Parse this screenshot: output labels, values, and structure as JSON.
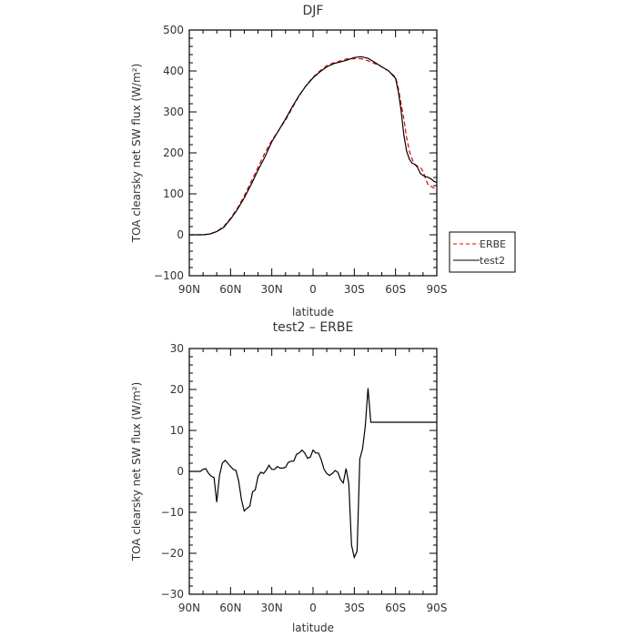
{
  "chart_data": [
    {
      "type": "line",
      "title": "DJF",
      "xlabel": "latitude",
      "ylabel": "TOA clearsky net SW flux (W/m²)",
      "xlim": [
        -90,
        90
      ],
      "ylim": [
        -100,
        500
      ],
      "x_tick_values": [
        -90,
        -60,
        -30,
        0,
        30,
        60,
        90
      ],
      "x_tick_labels": [
        "90N",
        "60N",
        "30N",
        "0",
        "30S",
        "60S",
        "90S"
      ],
      "y_ticks": [
        -100,
        0,
        100,
        200,
        300,
        400,
        500
      ],
      "legend": "outside right",
      "series": [
        {
          "name": "ERBE",
          "color": "#e00000",
          "dash": "dashed",
          "x": [
            -90,
            -85,
            -80,
            -75,
            -70,
            -65,
            -60,
            -55,
            -50,
            -45,
            -40,
            -35,
            -30,
            -25,
            -20,
            -15,
            -10,
            -5,
            0,
            5,
            10,
            15,
            20,
            25,
            30,
            35,
            40,
            45,
            50,
            55,
            60,
            62,
            64,
            66,
            68,
            70,
            72,
            74,
            76,
            78,
            80,
            82,
            84,
            86,
            88,
            90
          ],
          "y": [
            0,
            0,
            0,
            2,
            8,
            20,
            40,
            65,
            95,
            130,
            165,
            200,
            230,
            255,
            280,
            310,
            340,
            365,
            385,
            400,
            413,
            420,
            425,
            430,
            430,
            430,
            425,
            418,
            410,
            400,
            385,
            358,
            320,
            285,
            238,
            205,
            185,
            172,
            168,
            165,
            155,
            135,
            120,
            118,
            114,
            114
          ]
        },
        {
          "name": "test2",
          "color": "#000000",
          "dash": "solid",
          "x": [
            -90,
            -85,
            -80,
            -75,
            -70,
            -65,
            -60,
            -55,
            -50,
            -45,
            -40,
            -35,
            -30,
            -25,
            -20,
            -15,
            -10,
            -5,
            0,
            5,
            10,
            15,
            20,
            25,
            30,
            35,
            40,
            45,
            50,
            55,
            60,
            62,
            64,
            66,
            68,
            70,
            72,
            74,
            76,
            78,
            80,
            82,
            84,
            86,
            88,
            90
          ],
          "y": [
            0,
            0,
            0,
            2,
            8,
            18,
            38,
            62,
            90,
            123,
            158,
            190,
            227,
            255,
            283,
            313,
            341,
            364,
            383,
            398,
            410,
            418,
            422,
            427,
            433,
            435,
            431,
            421,
            410,
            400,
            382,
            350,
            305,
            245,
            205,
            185,
            175,
            172,
            165,
            150,
            145,
            142,
            140,
            136,
            130,
            128
          ]
        }
      ]
    },
    {
      "type": "line",
      "title": "test2 – ERBE",
      "xlabel": "latitude",
      "ylabel": "TOA clearsky net SW flux (W/m²)",
      "xlim": [
        -90,
        90
      ],
      "ylim": [
        -30,
        30
      ],
      "x_tick_values": [
        -90,
        -60,
        -30,
        0,
        30,
        60,
        90
      ],
      "x_tick_labels": [
        "90N",
        "60N",
        "30N",
        "0",
        "30S",
        "60S",
        "90S"
      ],
      "y_ticks": [
        -30,
        -20,
        -10,
        0,
        10,
        20,
        30
      ],
      "series": [
        {
          "color": "#000000",
          "dash": "solid",
          "x": [
            -90,
            -88,
            -86,
            -84,
            -82,
            -80,
            -78,
            -76,
            -74,
            -72,
            -70,
            -68,
            -66,
            -64,
            -62,
            -60,
            -58,
            -56,
            -54,
            -52,
            -50,
            -48,
            -46,
            -44,
            -42,
            -40,
            -38,
            -36,
            -34,
            -32,
            -30,
            -28,
            -26,
            -24,
            -22,
            -20,
            -18,
            -16,
            -14,
            -12,
            -10,
            -8,
            -6,
            -4,
            -2,
            0,
            2,
            4,
            6,
            8,
            10,
            12,
            14,
            16,
            18,
            20,
            22,
            24,
            26,
            28,
            30,
            32,
            34,
            36,
            38,
            40,
            42,
            44,
            46,
            48,
            50,
            52,
            54,
            56,
            58,
            60,
            62,
            64,
            66,
            68,
            70,
            72,
            74,
            76,
            78,
            80,
            82,
            84,
            86,
            88,
            90
          ],
          "y": [
            0,
            0,
            0,
            0,
            0,
            0.5,
            0.7,
            -0.5,
            -1.2,
            -1.5,
            -7.5,
            -1.0,
            2.0,
            2.7,
            2.0,
            1.2,
            0.5,
            0.2,
            -2.5,
            -7.0,
            -9.7,
            -9.0,
            -8.5,
            -5.0,
            -4.5,
            -1.2,
            -0.2,
            -0.5,
            0.3,
            1.5,
            0.5,
            0.5,
            1.2,
            0.8,
            0.8,
            1.0,
            2.2,
            2.5,
            2.5,
            4.2,
            4.5,
            5.2,
            4.5,
            3.2,
            3.5,
            5.2,
            4.5,
            4.5,
            2.8,
            0.5,
            -0.5,
            -1.0,
            -0.5,
            0.2,
            -0.2,
            -2.0,
            -2.8,
            0.7,
            -3.0,
            -18.0,
            -21.0,
            -19.5,
            3.0,
            5.5,
            11.0,
            20.3,
            12.0,
            12.0,
            12.0,
            12.0,
            12.0,
            12.0,
            12.0,
            12.0,
            12.0,
            12.0,
            12.0,
            12.0,
            12.0,
            12.0,
            12.0,
            12.0,
            12.0,
            12.0,
            12.0,
            12.0,
            12.0,
            12.0,
            12.0,
            12.0,
            12.0
          ]
        }
      ]
    }
  ]
}
